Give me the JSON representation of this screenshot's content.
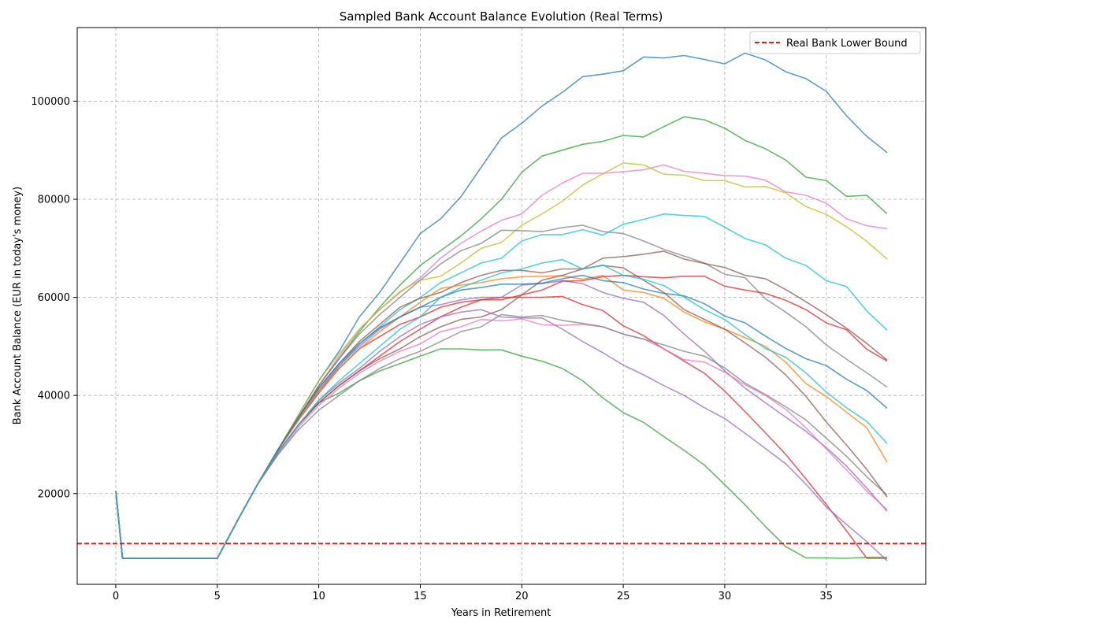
{
  "chart_data": {
    "type": "line",
    "title": "Sampled Bank Account Balance Evolution (Real Terms)",
    "xlabel": "Years in Retirement",
    "ylabel": "Bank Account Balance (EUR in today's money)",
    "xlim": [
      -1.9,
      39.9
    ],
    "ylim": [
      1500,
      115000
    ],
    "xticks": [
      0,
      5,
      10,
      15,
      20,
      25,
      30,
      35
    ],
    "yticks": [
      20000,
      40000,
      60000,
      80000,
      100000
    ],
    "grid": true,
    "legend": {
      "placement": "top-right",
      "entries": [
        "Real Bank Lower Bound"
      ]
    },
    "reference_line": {
      "name": "Real Bank Lower Bound",
      "y": 9800,
      "color": "#e31a1c",
      "style": "dashed"
    },
    "x": [
      0,
      0.33,
      1,
      2,
      3,
      4,
      5,
      6,
      7,
      8,
      9,
      10,
      11,
      12,
      13,
      14,
      15,
      16,
      17,
      18,
      19,
      20,
      21,
      22,
      23,
      24,
      25,
      26,
      27,
      28,
      29,
      30,
      31,
      32,
      33,
      34,
      35,
      36,
      37,
      38
    ],
    "series": [
      {
        "color": "#1f77b4",
        "values": [
          20500,
          6800,
          6800,
          6800,
          6800,
          6800,
          6800,
          14500,
          22000,
          29000,
          36000,
          43000,
          49000,
          56000,
          61000,
          67000,
          73000,
          76000,
          80500,
          86500,
          92500,
          95500,
          99000,
          101800,
          105000,
          105500,
          106200,
          109000,
          108800,
          109300,
          108500,
          107600,
          109800,
          108400,
          106000,
          104600,
          102000,
          97000,
          92800,
          89500
        ]
      },
      {
        "color": "#2ca02c",
        "values": [
          20500,
          6800,
          6800,
          6800,
          6800,
          6800,
          6800,
          14500,
          22000,
          29000,
          35500,
          42000,
          47500,
          53000,
          58000,
          62500,
          66500,
          69500,
          72500,
          76000,
          80000,
          85500,
          88800,
          90000,
          91200,
          91800,
          93000,
          92700,
          94800,
          96800,
          96200,
          94500,
          92000,
          90300,
          88000,
          84500,
          83800,
          80600,
          80800,
          77000
        ]
      },
      {
        "color": "#e377c2",
        "values": [
          20500,
          6800,
          6800,
          6800,
          6800,
          6800,
          6800,
          14500,
          22000,
          29000,
          35500,
          42000,
          48000,
          53500,
          57500,
          61000,
          64000,
          68000,
          71000,
          73500,
          75700,
          77000,
          80800,
          83300,
          85300,
          85300,
          85600,
          86000,
          87000,
          85700,
          85300,
          84800,
          84700,
          83900,
          81500,
          80800,
          79200,
          76000,
          74600,
          74000
        ]
      },
      {
        "color": "#bcbd22",
        "values": [
          20500,
          6800,
          6800,
          6800,
          6800,
          6800,
          6800,
          14500,
          22000,
          29000,
          36000,
          43000,
          48500,
          53500,
          57500,
          61200,
          63500,
          64300,
          67000,
          70000,
          71200,
          74700,
          77000,
          79600,
          82900,
          85200,
          87400,
          87000,
          85100,
          84900,
          83800,
          83800,
          82500,
          82600,
          81300,
          78500,
          76900,
          74400,
          71400,
          67800
        ]
      },
      {
        "color": "#7f7f7f",
        "values": [
          20500,
          6800,
          6800,
          6800,
          6800,
          6800,
          6800,
          14500,
          22000,
          29000,
          35500,
          42000,
          47500,
          52500,
          56500,
          60000,
          63500,
          66800,
          69500,
          71000,
          73700,
          73600,
          73400,
          74200,
          74700,
          73400,
          73000,
          71500,
          69800,
          68400,
          67000,
          64700,
          64000,
          59700,
          57000,
          54000,
          50300,
          47400,
          44600,
          41700
        ]
      },
      {
        "color": "#17becf",
        "values": [
          20500,
          6800,
          6800,
          6800,
          6800,
          6800,
          6800,
          14500,
          22000,
          29000,
          35000,
          41000,
          46000,
          50500,
          54000,
          57500,
          60000,
          63000,
          65000,
          67000,
          68000,
          71500,
          72800,
          72800,
          73800,
          72700,
          74900,
          75900,
          77000,
          76700,
          76500,
          74300,
          72000,
          70700,
          68000,
          66500,
          63400,
          62200,
          57200,
          53300
        ]
      },
      {
        "color": "#8c564b",
        "values": [
          20500,
          6800,
          6800,
          6800,
          6800,
          6800,
          6800,
          14500,
          22000,
          29000,
          35500,
          41500,
          46500,
          51000,
          54500,
          58000,
          59800,
          61000,
          63000,
          64500,
          65500,
          65500,
          65000,
          65800,
          65800,
          68000,
          68300,
          68800,
          69400,
          67800,
          66900,
          66100,
          64500,
          63800,
          61600,
          59100,
          56500,
          53700,
          50600,
          47200
        ]
      },
      {
        "color": "#d62728",
        "values": [
          20500,
          6800,
          6800,
          6800,
          6800,
          6800,
          6800,
          14500,
          22000,
          29000,
          35000,
          40500,
          45500,
          49500,
          52000,
          54500,
          56000,
          58000,
          59000,
          59500,
          60000,
          60000,
          60000,
          60200,
          58500,
          57300,
          54200,
          52200,
          49500,
          47000,
          44500,
          40900,
          36700,
          32400,
          28000,
          23000,
          17800,
          12400,
          6800,
          6800
        ]
      },
      {
        "color": "#9467bd",
        "values": [
          20500,
          6800,
          6800,
          6800,
          6800,
          6800,
          6800,
          14500,
          22000,
          29000,
          35000,
          41000,
          46000,
          50000,
          53500,
          56000,
          58000,
          58500,
          59500,
          60000,
          60000,
          62500,
          62800,
          63400,
          62800,
          61000,
          59800,
          59000,
          56300,
          52500,
          49000,
          45000,
          41500,
          38500,
          35600,
          32700,
          29400,
          25600,
          21100,
          16400
        ]
      },
      {
        "color": "#ff7f0e",
        "values": [
          20500,
          6800,
          6800,
          6800,
          6800,
          6800,
          6800,
          14500,
          22000,
          29000,
          35000,
          41000,
          45500,
          49500,
          53000,
          56000,
          59000,
          61800,
          62500,
          63000,
          63800,
          64200,
          64300,
          64400,
          63700,
          64500,
          61500,
          61000,
          59800,
          57000,
          55000,
          53500,
          51800,
          50000,
          46800,
          42400,
          39800,
          36600,
          33400,
          26400
        ]
      },
      {
        "color": "#2ca02c",
        "values": [
          20500,
          6800,
          6800,
          6800,
          6800,
          6800,
          6800,
          14500,
          22000,
          28500,
          34000,
          38500,
          40500,
          43000,
          45000,
          46500,
          48000,
          49500,
          49500,
          49300,
          49300,
          48000,
          47000,
          45500,
          43000,
          39500,
          36500,
          34500,
          31600,
          28800,
          25800,
          21800,
          17700,
          13300,
          9200,
          6900,
          6900,
          6800,
          7000,
          7000
        ]
      },
      {
        "color": "#e377c2",
        "values": [
          20500,
          6800,
          6800,
          6800,
          6800,
          6800,
          6800,
          14500,
          22000,
          28000,
          33500,
          38000,
          41500,
          44500,
          47000,
          49000,
          50500,
          53000,
          54000,
          55500,
          55200,
          55600,
          54400,
          54300,
          54500,
          54000,
          52500,
          51500,
          49500,
          47300,
          46800,
          44700,
          42200,
          40000,
          37200,
          33400,
          29100,
          24800,
          20500,
          16700
        ]
      },
      {
        "color": "#7f7f7f",
        "values": [
          20500,
          6800,
          6800,
          6800,
          6800,
          6800,
          6800,
          14500,
          22000,
          28000,
          33000,
          37000,
          40000,
          43000,
          45500,
          47500,
          49000,
          51000,
          53000,
          54000,
          56500,
          56000,
          56300,
          55300,
          54700,
          54000,
          52500,
          51500,
          50300,
          49000,
          48000,
          45600,
          42500,
          40200,
          37700,
          35000,
          31300,
          27600,
          23400,
          19700
        ]
      },
      {
        "color": "#1f77b4",
        "values": [
          20500,
          6800,
          6800,
          6800,
          6800,
          6800,
          6800,
          14500,
          22000,
          29000,
          35500,
          41500,
          46500,
          50500,
          53800,
          56000,
          58000,
          60000,
          61500,
          62000,
          62700,
          62700,
          62900,
          63800,
          64500,
          63400,
          63000,
          61700,
          60800,
          60300,
          58700,
          56200,
          54800,
          52100,
          49600,
          47500,
          46100,
          43300,
          41000,
          37400
        ]
      },
      {
        "color": "#d62728",
        "values": [
          20500,
          6800,
          6800,
          6800,
          6800,
          6800,
          6800,
          14500,
          22000,
          28500,
          34000,
          38500,
          42000,
          45000,
          48000,
          51000,
          53500,
          56000,
          58000,
          59500,
          59500,
          60500,
          61500,
          63300,
          63400,
          64200,
          64500,
          64200,
          64000,
          64300,
          64300,
          62300,
          61500,
          60800,
          59400,
          57500,
          54800,
          53400,
          49400,
          47000
        ]
      },
      {
        "color": "#8c564b",
        "values": [
          20500,
          6800,
          6800,
          6800,
          6800,
          6800,
          6800,
          14500,
          22000,
          28500,
          34000,
          38500,
          42000,
          45000,
          47500,
          49500,
          52000,
          54000,
          55500,
          56000,
          57500,
          60500,
          63500,
          64500,
          65800,
          66500,
          66000,
          63500,
          61000,
          57500,
          55500,
          53500,
          50700,
          47800,
          44200,
          39800,
          34600,
          29900,
          24900,
          19300
        ]
      },
      {
        "color": "#9467bd",
        "values": [
          20500,
          6800,
          6800,
          6800,
          6800,
          6800,
          6800,
          14500,
          22000,
          28500,
          34000,
          39000,
          42500,
          45500,
          49000,
          52000,
          54500,
          56000,
          57000,
          57500,
          56000,
          55800,
          55800,
          53500,
          51000,
          48700,
          46200,
          44200,
          42000,
          40000,
          37500,
          35300,
          32300,
          29200,
          26100,
          21900,
          17300,
          13700,
          10200,
          6300
        ]
      },
      {
        "color": "#17becf",
        "values": [
          20500,
          6800,
          6800,
          6800,
          6800,
          6800,
          6800,
          14500,
          22000,
          28500,
          34000,
          39000,
          43000,
          46500,
          50000,
          53500,
          56000,
          60000,
          62000,
          63500,
          65000,
          65800,
          67000,
          67700,
          65800,
          66600,
          64500,
          63700,
          62400,
          60000,
          57500,
          55500,
          52400,
          49600,
          47800,
          44600,
          40700,
          37500,
          34700,
          30200
        ]
      }
    ]
  }
}
